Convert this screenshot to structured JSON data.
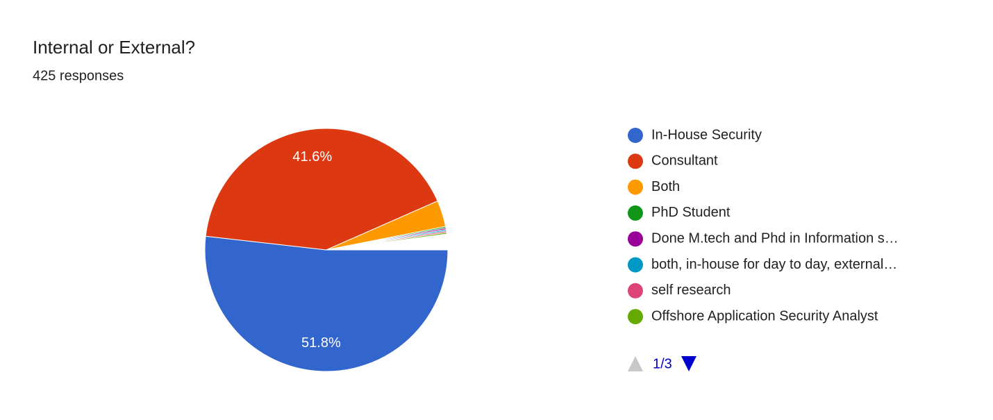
{
  "chart_data": {
    "type": "pie",
    "title": "Internal or External?",
    "subtitle": "425 responses",
    "categories": [
      "In-House Security",
      "Consultant",
      "Both",
      "PhD Student",
      "Done M.tech and Phd in Information s…",
      "both, in-house for day to day, external…",
      "self research",
      "Offshore Application Security Analyst"
    ],
    "values": [
      51.8,
      41.6,
      3.5,
      0.2,
      0.2,
      0.2,
      0.2,
      0.2
    ],
    "value_labels": [
      "51.8%",
      "41.6%",
      null,
      null,
      null,
      null,
      null,
      null
    ],
    "colors": [
      "#3366cc",
      "#dc3912",
      "#ff9900",
      "#109618",
      "#990099",
      "#0099c6",
      "#dd4477",
      "#66aa00"
    ],
    "legend": "right",
    "legend_page": "1/3"
  }
}
